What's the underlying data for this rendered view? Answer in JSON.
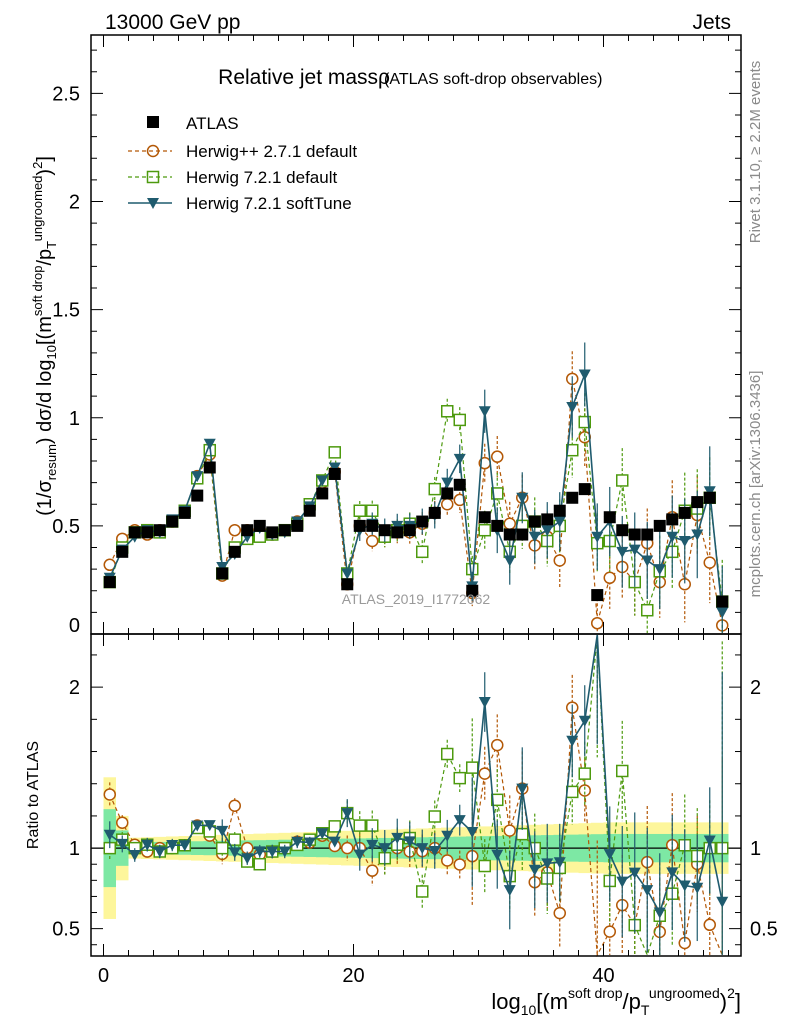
{
  "header": {
    "left": "13000 GeV pp",
    "right": "Jets"
  },
  "side_labels": {
    "top": "Rivet 3.1.10, ≥ 2.2M events",
    "bottom": "mcplots.cern.ch [arXiv:1306.3436]"
  },
  "chart_data": [
    {
      "type": "line",
      "title": "Relative jet massρ (ATLAS soft-drop observables)",
      "title_main": "Relative jet massρ",
      "title_sub": "(ATLAS soft-drop observables)",
      "ylabel": "(1/σresum) dσ/d log10[(m^(soft drop)/pT^(ungroomed))2]",
      "ylabel_parts": {
        "a": "(1/σ",
        "b": "resum",
        "c": ") dσ/d log",
        "d": "10",
        "e": "[(m",
        "f": "soft drop",
        "g": "/p",
        "h": "T",
        "i": "ungroomed",
        "j": ")",
        "k": "2",
        "l": "]"
      },
      "xlim": [
        -1,
        51
      ],
      "ylim": [
        0,
        2.77
      ],
      "x_ticks": [
        0,
        20,
        40
      ],
      "y_ticks": [
        0,
        0.5,
        1,
        1.5,
        2,
        2.5
      ],
      "y_tick_labels": [
        "0",
        "0.5",
        "1",
        "1.5",
        "2",
        "2.5"
      ],
      "watermark": "ATLAS_2019_I1772062",
      "legend_position": "top-left",
      "colors": {
        "atlas": "#000000",
        "h27": "#b35806",
        "h72d": "#4d9a0e",
        "h72s": "#1f5b6e"
      },
      "x": [
        0.5,
        1.5,
        2.5,
        3.5,
        4.5,
        5.5,
        6.5,
        7.5,
        8.5,
        9.5,
        10.5,
        11.5,
        12.5,
        13.5,
        14.5,
        15.5,
        16.5,
        17.5,
        18.5,
        19.5,
        20.5,
        21.5,
        22.5,
        23.5,
        24.5,
        25.5,
        26.5,
        27.5,
        28.5,
        29.5,
        30.5,
        31.5,
        32.5,
        33.5,
        34.5,
        35.5,
        36.5,
        37.5,
        38.5,
        39.5,
        40.5,
        41.5,
        42.5,
        43.5,
        44.5,
        45.5,
        46.5,
        47.5,
        48.5,
        49.5
      ],
      "series": [
        {
          "name": "ATLAS",
          "key": "atlas",
          "marker": "square-filled",
          "values": [
            0.24,
            0.38,
            0.47,
            0.47,
            0.48,
            0.52,
            0.56,
            0.64,
            0.77,
            0.28,
            0.38,
            0.48,
            0.5,
            0.47,
            0.48,
            0.5,
            0.57,
            0.65,
            0.74,
            0.23,
            0.5,
            0.5,
            0.48,
            0.47,
            0.48,
            0.52,
            0.56,
            0.65,
            0.69,
            0.2,
            0.54,
            0.5,
            0.46,
            0.46,
            0.52,
            0.53,
            0.57,
            0.63,
            0.67,
            0.18,
            0.54,
            0.48,
            0.46,
            0.46,
            0.5,
            0.53,
            0.56,
            0.61,
            0.63,
            0.15
          ]
        },
        {
          "name": "Herwig++ 2.7.1 default",
          "key": "h27",
          "marker": "circle-open",
          "dashed": true,
          "values": [
            0.32,
            0.44,
            0.48,
            0.46,
            0.48,
            0.52,
            0.57,
            0.73,
            0.83,
            0.27,
            0.48,
            0.48,
            0.48,
            0.46,
            0.48,
            0.52,
            0.59,
            0.7,
            0.75,
            0.23,
            0.5,
            0.43,
            0.45,
            0.47,
            0.47,
            0.51,
            0.56,
            0.6,
            0.62,
            0.19,
            0.79,
            0.82,
            0.51,
            0.63,
            0.41,
            0.45,
            0.34,
            1.18,
            0.91,
            0.05,
            0.26,
            0.31,
            0.24,
            0.42,
            0.24,
            0.54,
            0.23,
            0.55,
            0.33,
            0.04
          ]
        },
        {
          "name": "Herwig 7.2.1 default",
          "key": "h72d",
          "marker": "square-open",
          "dashed": true,
          "values": [
            0.24,
            0.4,
            0.47,
            0.48,
            0.47,
            0.52,
            0.57,
            0.72,
            0.85,
            0.28,
            0.4,
            0.44,
            0.45,
            0.46,
            0.48,
            0.51,
            0.6,
            0.71,
            0.84,
            0.28,
            0.57,
            0.57,
            0.45,
            0.48,
            0.51,
            0.38,
            0.67,
            1.03,
            0.99,
            0.3,
            0.48,
            0.65,
            0.38,
            0.5,
            0.52,
            0.43,
            0.5,
            0.85,
            0.98,
            0.42,
            0.43,
            0.71,
            0.24,
            0.11,
            0.29,
            0.38,
            0.57,
            0.58,
            0.63,
            0.15
          ]
        },
        {
          "name": "Herwig 7.2.1 softTune",
          "key": "h72s",
          "marker": "triangle-down-filled",
          "values": [
            0.26,
            0.39,
            0.45,
            0.48,
            0.47,
            0.53,
            0.57,
            0.73,
            0.88,
            0.31,
            0.37,
            0.45,
            0.49,
            0.46,
            0.47,
            0.52,
            0.59,
            0.71,
            0.77,
            0.28,
            0.48,
            0.51,
            0.48,
            0.5,
            0.5,
            0.52,
            0.55,
            0.7,
            0.81,
            0.22,
            1.03,
            0.48,
            0.34,
            0.63,
            0.45,
            0.48,
            0.52,
            1.05,
            1.2,
            0.45,
            0.52,
            0.38,
            0.39,
            0.34,
            0.3,
            0.45,
            0.43,
            0.46,
            0.66,
            0.1
          ]
        }
      ]
    },
    {
      "type": "line",
      "ylabel": "Ratio to ATLAS",
      "xlabel": "log10[(m^(soft drop)/pT^(ungroomed))2]",
      "xlabel_parts": {
        "a": "log",
        "b": "10",
        "c": "[(m",
        "d": "soft drop",
        "e": "/p",
        "f": "T",
        "g": "ungroomed",
        "h": ")",
        "i": "2",
        "j": "]"
      },
      "xlim": [
        -1,
        51
      ],
      "ylim": [
        0.33,
        2.33
      ],
      "x_ticks": [
        0,
        20,
        40
      ],
      "x_tick_labels": [
        "0",
        "20",
        "40"
      ],
      "y_ticks": [
        0.5,
        1,
        2
      ],
      "y_tick_labels": [
        "0.5",
        "1",
        "2"
      ],
      "reference_line": 1
    }
  ]
}
